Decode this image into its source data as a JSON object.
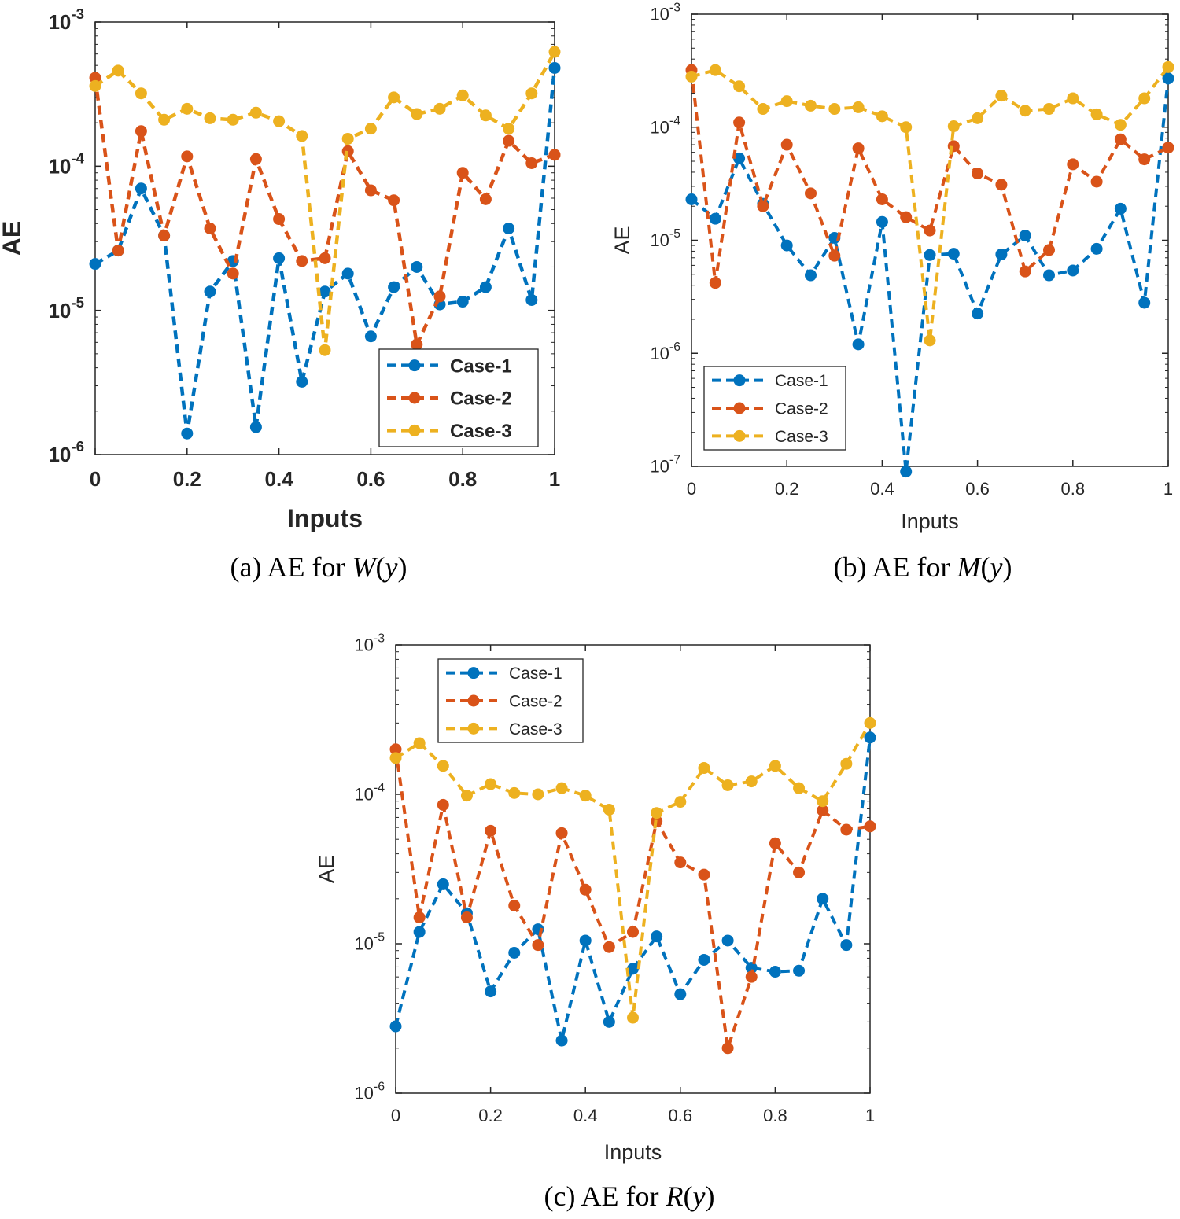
{
  "chart_data": [
    {
      "type": "line",
      "caption": {
        "prefix": "(a) AE for ",
        "fn": "W",
        "arg": "(y)"
      },
      "xlabel": "Inputs",
      "ylabel": "AE",
      "yscale": "log",
      "xlim": [
        0,
        1
      ],
      "ylim": [
        1e-06,
        0.001
      ],
      "x_ticks": [
        "0",
        "0.2",
        "0.4",
        "0.6",
        "0.8",
        "1"
      ],
      "y_ticks": [
        {
          "base": "10",
          "exp": "-6"
        },
        {
          "base": "10",
          "exp": "-5"
        },
        {
          "base": "10",
          "exp": "-4"
        },
        {
          "base": "10",
          "exp": "-3"
        }
      ],
      "legend_position": "bottom-right",
      "x": [
        0,
        0.05,
        0.1,
        0.15,
        0.2,
        0.25,
        0.3,
        0.35,
        0.4,
        0.45,
        0.5,
        0.55,
        0.6,
        0.65,
        0.7,
        0.75,
        0.8,
        0.85,
        0.9,
        0.95,
        1
      ],
      "series": [
        {
          "name": "Case-1",
          "values": [
            2.1e-05,
            2.6e-05,
            7e-05,
            3.3e-05,
            1.4e-06,
            1.35e-05,
            2.2e-05,
            1.55e-06,
            2.3e-05,
            3.2e-06,
            1.35e-05,
            1.8e-05,
            6.6e-06,
            1.45e-05,
            2e-05,
            1.1e-05,
            1.15e-05,
            1.45e-05,
            3.7e-05,
            1.18e-05,
            0.00048
          ]
        },
        {
          "name": "Case-2",
          "values": [
            0.00041,
            2.6e-05,
            0.000175,
            3.3e-05,
            0.000117,
            3.7e-05,
            1.8e-05,
            0.000112,
            4.3e-05,
            2.2e-05,
            2.3e-05,
            0.000127,
            6.8e-05,
            5.8e-05,
            5.8e-06,
            1.25e-05,
            9e-05,
            5.9e-05,
            0.00015,
            0.000105,
            0.00012
          ]
        },
        {
          "name": "Case-3",
          "values": [
            0.00036,
            0.00046,
            0.00032,
            0.00021,
            0.00025,
            0.000215,
            0.00021,
            0.000235,
            0.000205,
            0.000162,
            5.3e-06,
            0.000155,
            0.000182,
            0.0003,
            0.00023,
            0.00025,
            0.00031,
            0.000225,
            0.000182,
            0.00032,
            0.00062
          ]
        }
      ]
    },
    {
      "type": "line",
      "caption": {
        "prefix": "(b) AE for ",
        "fn": "M",
        "arg": "(y)"
      },
      "xlabel": "Inputs",
      "ylabel": "AE",
      "yscale": "log",
      "xlim": [
        0,
        1
      ],
      "ylim": [
        1e-07,
        0.001
      ],
      "x_ticks": [
        "0",
        "0.2",
        "0.4",
        "0.6",
        "0.8",
        "1"
      ],
      "y_ticks": [
        {
          "base": "10",
          "exp": "-7"
        },
        {
          "base": "10",
          "exp": "-6"
        },
        {
          "base": "10",
          "exp": "-5"
        },
        {
          "base": "10",
          "exp": "-4"
        },
        {
          "base": "10",
          "exp": "-3"
        }
      ],
      "legend_position": "bottom-left",
      "x": [
        0,
        0.05,
        0.1,
        0.15,
        0.2,
        0.25,
        0.3,
        0.35,
        0.4,
        0.45,
        0.5,
        0.55,
        0.6,
        0.65,
        0.7,
        0.75,
        0.8,
        0.85,
        0.9,
        0.95,
        1
      ],
      "series": [
        {
          "name": "Case-1",
          "values": [
            2.3e-05,
            1.55e-05,
            5.3e-05,
            2.1e-05,
            9e-06,
            4.9e-06,
            1.05e-05,
            1.2e-06,
            1.45e-05,
            9e-08,
            7.4e-06,
            7.6e-06,
            2.25e-06,
            7.5e-06,
            1.1e-05,
            4.9e-06,
            5.4e-06,
            8.4e-06,
            1.9e-05,
            2.8e-06,
            0.00027
          ]
        },
        {
          "name": "Case-2",
          "values": [
            0.00032,
            4.2e-06,
            0.00011,
            2e-05,
            7e-05,
            2.6e-05,
            7.3e-06,
            6.5e-05,
            2.3e-05,
            1.6e-05,
            1.22e-05,
            6.8e-05,
            3.9e-05,
            3.1e-05,
            5.3e-06,
            8.2e-06,
            4.7e-05,
            3.3e-05,
            7.8e-05,
            5.2e-05,
            6.6e-05
          ]
        },
        {
          "name": "Case-3",
          "values": [
            0.00028,
            0.00032,
            0.00023,
            0.000145,
            0.00017,
            0.000155,
            0.000145,
            0.00015,
            0.000125,
            0.0001,
            1.3e-06,
            0.000102,
            0.00012,
            0.00019,
            0.00014,
            0.000145,
            0.00018,
            0.00013,
            0.000105,
            0.00018,
            0.00034
          ]
        }
      ]
    },
    {
      "type": "line",
      "caption": {
        "prefix": "(c) AE for ",
        "fn": "R",
        "arg": "(y)"
      },
      "xlabel": "Inputs",
      "ylabel": "AE",
      "yscale": "log",
      "xlim": [
        0,
        1
      ],
      "ylim": [
        1e-06,
        0.001
      ],
      "x_ticks": [
        "0",
        "0.2",
        "0.4",
        "0.6",
        "0.8",
        "1"
      ],
      "y_ticks": [
        {
          "base": "10",
          "exp": "-6"
        },
        {
          "base": "10",
          "exp": "-5"
        },
        {
          "base": "10",
          "exp": "-4"
        },
        {
          "base": "10",
          "exp": "-3"
        }
      ],
      "legend_position": "top-left",
      "x": [
        0,
        0.05,
        0.1,
        0.15,
        0.2,
        0.25,
        0.3,
        0.35,
        0.4,
        0.45,
        0.5,
        0.55,
        0.6,
        0.65,
        0.7,
        0.75,
        0.8,
        0.85,
        0.9,
        0.95,
        1
      ],
      "series": [
        {
          "name": "Case-1",
          "values": [
            2.8e-06,
            1.2e-05,
            2.5e-05,
            1.6e-05,
            4.8e-06,
            8.7e-06,
            1.25e-05,
            2.25e-06,
            1.05e-05,
            3e-06,
            6.8e-06,
            1.12e-05,
            4.6e-06,
            7.8e-06,
            1.05e-05,
            6.9e-06,
            6.5e-06,
            6.6e-06,
            2e-05,
            9.8e-06,
            0.00024
          ]
        },
        {
          "name": "Case-2",
          "values": [
            0.0002,
            1.5e-05,
            8.5e-05,
            1.5e-05,
            5.7e-05,
            1.8e-05,
            9.8e-06,
            5.5e-05,
            2.3e-05,
            9.5e-06,
            1.2e-05,
            6.6e-05,
            3.5e-05,
            2.9e-05,
            2e-06,
            6e-06,
            4.7e-05,
            3e-05,
            7.8e-05,
            5.8e-05,
            6.1e-05
          ]
        },
        {
          "name": "Case-3",
          "values": [
            0.000175,
            0.00022,
            0.000155,
            9.8e-05,
            0.000117,
            0.000102,
            0.0001,
            0.00011,
            9.8e-05,
            7.9e-05,
            3.2e-06,
            7.5e-05,
            8.9e-05,
            0.00015,
            0.000115,
            0.000122,
            0.000155,
            0.00011,
            9e-05,
            0.00016,
            0.0003
          ]
        }
      ]
    }
  ],
  "colors": {
    "case1": "#0072BD",
    "case2": "#D95319",
    "case3": "#EDB120",
    "axis": "#262626"
  }
}
